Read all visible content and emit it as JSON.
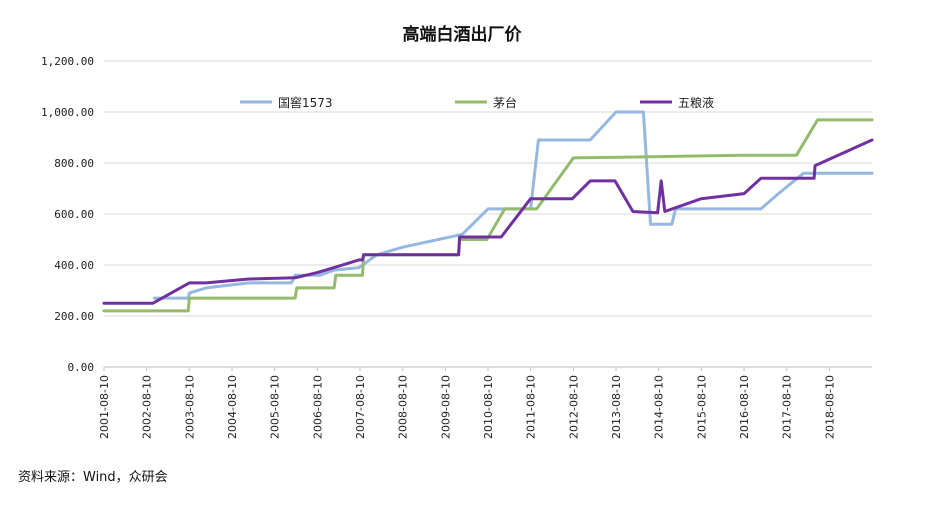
{
  "chart_data": {
    "type": "line",
    "title": "高端白酒出厂价",
    "xlabel": "",
    "ylabel": "",
    "ylim": [
      0,
      1200
    ],
    "y_ticks": [
      "0.00",
      "200.00",
      "400.00",
      "600.00",
      "800.00",
      "1,000.00",
      "1,200.00"
    ],
    "x_range": [
      "2001-08-10",
      "2019-08-10"
    ],
    "x_ticks": [
      "2001-08-10",
      "2002-08-10",
      "2003-08-10",
      "2004-08-10",
      "2005-08-10",
      "2006-08-10",
      "2007-08-10",
      "2008-08-10",
      "2009-08-10",
      "2010-08-10",
      "2011-08-10",
      "2012-08-10",
      "2013-08-10",
      "2014-08-10",
      "2015-08-10",
      "2016-08-10",
      "2017-08-10",
      "2018-08-10"
    ],
    "grid": "horizontal",
    "legend_position": "top",
    "series": [
      {
        "name": "国窖1573",
        "color": "#95b7e0",
        "points": [
          [
            "2002-10-15",
            270
          ],
          [
            "2003-08-01",
            270
          ],
          [
            "2003-08-10",
            290
          ],
          [
            "2004-01-01",
            310
          ],
          [
            "2005-01-01",
            330
          ],
          [
            "2006-01-01",
            330
          ],
          [
            "2006-02-01",
            360
          ],
          [
            "2006-09-01",
            360
          ],
          [
            "2007-01-01",
            380
          ],
          [
            "2007-08-01",
            390
          ],
          [
            "2008-01-01",
            440
          ],
          [
            "2008-08-10",
            470
          ],
          [
            "2010-01-01",
            520
          ],
          [
            "2010-08-10",
            620
          ],
          [
            "2011-08-10",
            620
          ],
          [
            "2011-10-15",
            890
          ],
          [
            "2013-01-01",
            890
          ],
          [
            "2013-08-10",
            1000
          ],
          [
            "2014-04-01",
            1000
          ],
          [
            "2014-06-01",
            560
          ],
          [
            "2014-12-01",
            560
          ],
          [
            "2015-01-01",
            620
          ],
          [
            "2017-01-01",
            620
          ],
          [
            "2017-06-01",
            680
          ],
          [
            "2018-01-01",
            760
          ],
          [
            "2019-08-10",
            760
          ]
        ]
      },
      {
        "name": "茅台",
        "color": "#93bb6b",
        "points": [
          [
            "2001-08-10",
            220
          ],
          [
            "2003-08-01",
            220
          ],
          [
            "2003-08-10",
            270
          ],
          [
            "2006-02-01",
            270
          ],
          [
            "2006-02-15",
            310
          ],
          [
            "2007-01-01",
            310
          ],
          [
            "2007-01-15",
            360
          ],
          [
            "2007-09-01",
            360
          ],
          [
            "2007-09-10",
            440
          ],
          [
            "2009-12-01",
            440
          ],
          [
            "2009-12-10",
            500
          ],
          [
            "2010-08-01",
            500
          ],
          [
            "2011-01-01",
            620
          ],
          [
            "2011-10-01",
            620
          ],
          [
            "2012-08-10",
            820
          ],
          [
            "2014-08-10",
            825
          ],
          [
            "2015-08-10",
            828
          ],
          [
            "2016-08-10",
            830
          ],
          [
            "2017-11-01",
            830
          ],
          [
            "2018-05-01",
            969
          ],
          [
            "2019-08-10",
            969
          ]
        ]
      },
      {
        "name": "五粮液",
        "color": "#7030a0",
        "points": [
          [
            "2001-08-10",
            250
          ],
          [
            "2002-10-01",
            250
          ],
          [
            "2003-08-10",
            330
          ],
          [
            "2004-01-01",
            330
          ],
          [
            "2005-01-01",
            345
          ],
          [
            "2006-02-01",
            350
          ],
          [
            "2006-08-10",
            370
          ],
          [
            "2007-01-01",
            390
          ],
          [
            "2007-08-01",
            420
          ],
          [
            "2007-09-01",
            420
          ],
          [
            "2007-09-10",
            440
          ],
          [
            "2009-12-01",
            440
          ],
          [
            "2009-12-10",
            510
          ],
          [
            "2010-12-01",
            510
          ],
          [
            "2011-08-10",
            660
          ],
          [
            "2012-08-01",
            660
          ],
          [
            "2013-01-01",
            730
          ],
          [
            "2013-08-01",
            730
          ],
          [
            "2014-01-01",
            610
          ],
          [
            "2014-08-01",
            605
          ],
          [
            "2014-09-01",
            730
          ],
          [
            "2014-10-01",
            610
          ],
          [
            "2015-08-10",
            660
          ],
          [
            "2016-08-10",
            680
          ],
          [
            "2017-01-01",
            740
          ],
          [
            "2018-04-01",
            740
          ],
          [
            "2018-04-10",
            790
          ],
          [
            "2019-08-10",
            890
          ]
        ]
      }
    ]
  },
  "footer": {
    "source": "资料来源：Wind，众研会"
  }
}
